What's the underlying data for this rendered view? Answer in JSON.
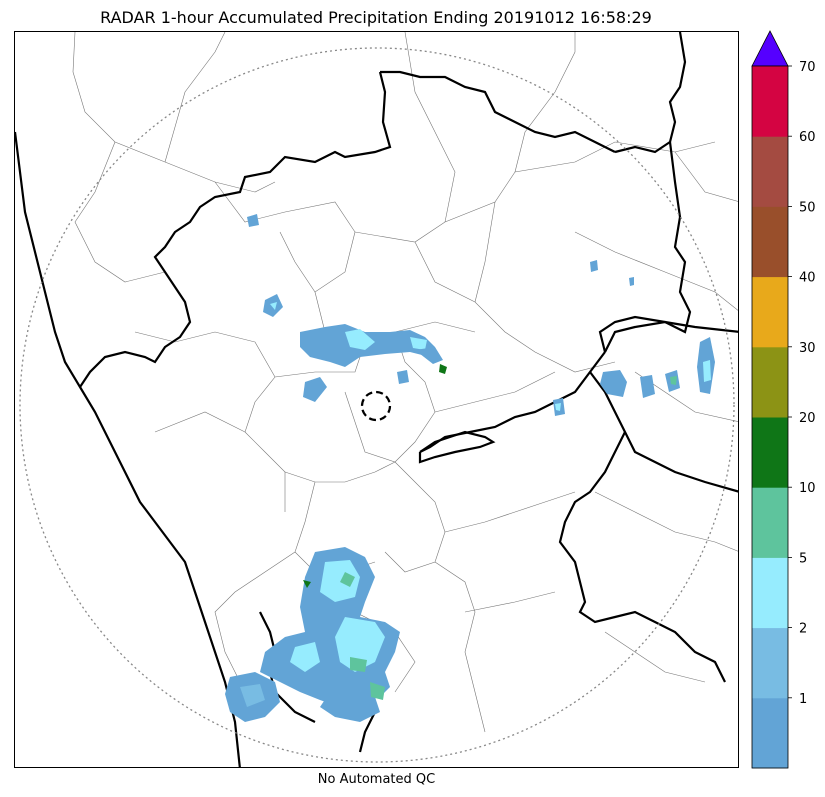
{
  "title": "RADAR 1-hour Accumulated Precipitation Ending 20191012 16:58:29",
  "footer": "No Automated QC",
  "colorbar": {
    "extend_color": "#5500ff",
    "bins": [
      {
        "color": "#62a4d6"
      },
      {
        "color": "#78bce3"
      },
      {
        "color": "#96ecfe"
      },
      {
        "color": "#5ec49d"
      },
      {
        "color": "#0f7617"
      },
      {
        "color": "#8c9315"
      },
      {
        "color": "#e8a91b"
      },
      {
        "color": "#994f2b"
      },
      {
        "color": "#a44b41"
      },
      {
        "color": "#d40442"
      }
    ],
    "tick_labels": [
      "1",
      "2",
      "5",
      "10",
      "20",
      "30",
      "40",
      "50",
      "60",
      "70"
    ]
  }
}
